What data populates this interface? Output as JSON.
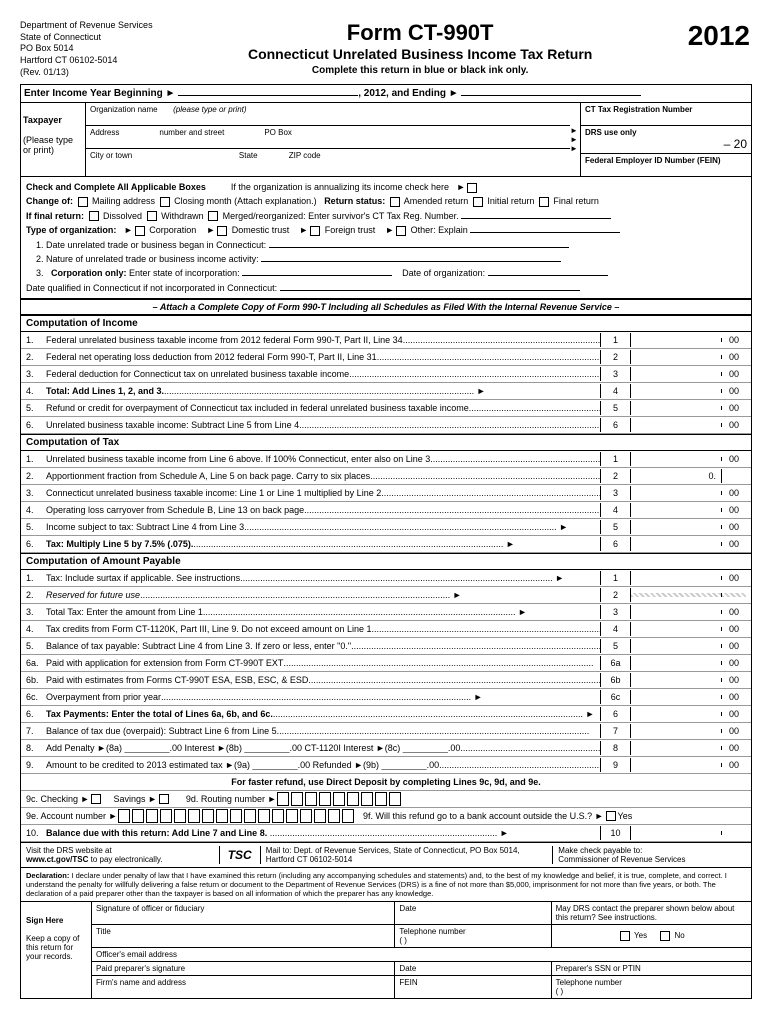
{
  "header": {
    "dept": "Department of Revenue Services",
    "state": "State of Connecticut",
    "pobox": "PO Box 5014",
    "city": "Hartford CT 06102-5014",
    "rev": "(Rev. 01/13)",
    "form_code": "Form CT-990T",
    "form_title": "Connecticut Unrelated Business Income Tax Return",
    "year": "2012",
    "instruction": "Complete this return in blue or black ink only."
  },
  "date_line": {
    "prefix": "Enter Income Year Beginning ►",
    "mid": ", 2012, and Ending ►"
  },
  "taxpayer": {
    "title": "Taxpayer",
    "note": "(Please type or print)",
    "org_label": "Organization name",
    "org_hint": "(please type or print)",
    "addr_label": "Address",
    "addr_hint": "number and street",
    "pobox_label": "PO Box",
    "city_label": "City or town",
    "state_label": "State",
    "zip_label": "ZIP code",
    "ct_reg": "CT Tax Registration Number",
    "drs": "DRS use only",
    "drs_val": "– 20",
    "fein": "Federal Employer ID Number (FEIN)"
  },
  "checkboxes": {
    "title": "Check and Complete All Applicable Boxes",
    "annualize": "If the organization is annualizing its income check here",
    "change_of": "Change of:",
    "mailing": "Mailing address",
    "closing": "Closing month (Attach explanation.)",
    "return_status": "Return status:",
    "amended": "Amended return",
    "initial": "Initial return",
    "final": "Final return",
    "if_final": "If final return:",
    "dissolved": "Dissolved",
    "withdrawn": "Withdrawn",
    "merged": "Merged/reorganized: Enter survivor's CT Tax Reg. Number.",
    "type_org": "Type of organization:",
    "corp": "Corporation",
    "domestic": "Domestic trust",
    "foreign": "Foreign trust",
    "other": "Other: Explain",
    "q1": "1.   Date unrelated trade or business began in Connecticut:",
    "q2": "2.   Nature of unrelated trade or business income activity:",
    "q3": "3.   Corporation only: Enter state of incorporation:",
    "q3b": "Date of organization:",
    "q4": "Date qualified in Connecticut if not incorporated in Connecticut:",
    "attach": "– Attach a Complete Copy of Form 990-T Including all Schedules as Filed With the Internal Revenue Service –"
  },
  "income": {
    "header": "Computation of Income",
    "lines": [
      {
        "n": "1.",
        "d": "Federal unrelated business taxable income from 2012 federal Form 990-T, Part II, Line 34",
        "b": "1",
        "c": "00"
      },
      {
        "n": "2.",
        "d": "Federal net operating loss deduction from 2012 federal Form 990-T, Part II, Line 31",
        "b": "2",
        "c": "00"
      },
      {
        "n": "3.",
        "d": "Federal deduction for Connecticut tax on unrelated business taxable income",
        "b": "3",
        "c": "00"
      },
      {
        "n": "4.",
        "d": "Total: Add Lines 1, 2, and 3.",
        "b": "4",
        "c": "00",
        "bold": true
      },
      {
        "n": "5.",
        "d": "Refund or credit for overpayment of Connecticut tax included in federal unrelated business taxable income",
        "b": "5",
        "c": "00"
      },
      {
        "n": "6.",
        "d": "Unrelated business taxable income: Subtract Line 5 from Line 4.",
        "b": "6",
        "c": "00"
      }
    ]
  },
  "tax": {
    "header": "Computation of Tax",
    "lines": [
      {
        "n": "1.",
        "d": "Unrelated business taxable income from Line 6 above.  If 100% Connecticut, enter also on Line 3.",
        "b": "1",
        "c": "00"
      },
      {
        "n": "2.",
        "d": "Apportionment fraction from Schedule A, Line 5 on back page. Carry to six places.",
        "b": "2",
        "a": "0.",
        "c": ""
      },
      {
        "n": "3.",
        "d": "Connecticut unrelated business taxable income: Line 1 or Line 1 multiplied by Line 2.",
        "b": "3",
        "c": "00"
      },
      {
        "n": "4.",
        "d": "Operating loss carryover from Schedule B, Line 13 on back page",
        "b": "4",
        "c": "00"
      },
      {
        "n": "5.",
        "d": "Income subject to tax: Subtract Line 4 from Line 3.",
        "b": "5",
        "c": "00"
      },
      {
        "n": "6.",
        "d": "Tax: Multiply Line 5 by 7.5% (.075).",
        "b": "6",
        "c": "00",
        "bold": true
      }
    ]
  },
  "payable": {
    "header": "Computation of Amount Payable",
    "lines": [
      {
        "n": "1.",
        "d": "Tax: Include surtax if applicable. See instructions.",
        "b": "1",
        "c": "00"
      },
      {
        "n": "2.",
        "d": "Reserved for future use",
        "b": "2",
        "shaded": true,
        "italic": true
      },
      {
        "n": "3.",
        "d": "Total Tax: Enter the amount from Line 1.",
        "b": "3",
        "c": "00"
      },
      {
        "n": "4.",
        "d": "Tax credits from Form CT-1120K, Part III, Line 9. Do not exceed amount on Line 1.",
        "b": "4",
        "c": "00"
      },
      {
        "n": "5.",
        "d": "Balance of tax payable: Subtract Line 4 from Line 3. If zero or less, enter \"0.\"",
        "b": "5",
        "c": "00"
      },
      {
        "n": "6a.",
        "d": "Paid with application for extension from Form CT-990T EXT",
        "b": "6a",
        "c": "00"
      },
      {
        "n": "6b.",
        "d": "Paid with estimates from Forms CT-990T ESA, ESB, ESC, & ESD",
        "b": "6b",
        "c": "00"
      },
      {
        "n": "6c.",
        "d": "Overpayment from prior year",
        "b": "6c",
        "c": "00"
      },
      {
        "n": "6.",
        "d": "Tax Payments: Enter the total of Lines 6a, 6b, and 6c.",
        "b": "6",
        "c": "00",
        "bold": true
      },
      {
        "n": "7.",
        "d": "Balance of tax due (overpaid): Subtract Line 6 from Line 5.",
        "b": "7",
        "c": "00"
      },
      {
        "n": "8.",
        "d": "Add Penalty ►(8a) _________.00  Interest ►(8b) _________.00  CT-1120I Interest ►(8c) _________.00",
        "b": "8",
        "c": "00"
      },
      {
        "n": "9.",
        "d": "Amount to be credited to 2013 estimated tax ►(9a) _________.00  Refunded ►(9b) _________.00",
        "b": "9",
        "c": "00"
      }
    ],
    "deposit_header": "For faster refund, use Direct Deposit by completing Lines 9c, 9d, and 9e.",
    "line9c": "9c.   Checking ►",
    "line9c_b": "Savings ►",
    "line9d": "9d.  Routing number ►",
    "line9e": "9e.   Account number ►",
    "line9f": "9f.  Will this refund go to a bank account outside the U.S.? ►",
    "line9f_yes": "Yes",
    "line10": {
      "n": "10.",
      "d": "Balance due with this return: Add Line 7 and Line 8.",
      "b": "10",
      "bold": true
    }
  },
  "footer": {
    "visit": "Visit the DRS website at",
    "web": "www.ct.gov/TSC",
    "web_suffix": " to pay electronically.",
    "tsc": "TSC",
    "mail": "Mail to: Dept. of Revenue Services, State of Connecticut, PO Box 5014, Hartford CT 06102-5014",
    "check": "Make check payable to:",
    "commissioner": "Commissioner of Revenue Services"
  },
  "declaration": {
    "title": "Declaration:",
    "text": "I declare under penalty of law that I have examined this return (including any accompanying schedules and statements) and, to the best of my knowledge and belief, it is true, complete, and correct. I understand the penalty for willfully delivering a false return or document to the Department of Revenue Services (DRS) is a fine of not more than $5,000, imprisonment for not more than five years, or both. The declaration of a paid preparer other than the taxpayer is based on all information of which the preparer has any knowledge."
  },
  "sign": {
    "sign_here": "Sign Here",
    "keep": "Keep a copy of this return for your records.",
    "sig": "Signature of officer or fiduciary",
    "date": "Date",
    "drs_contact": "May DRS contact the preparer shown below about this return? See instructions.",
    "yes": "Yes",
    "no": "No",
    "title": "Title",
    "phone": "Telephone number",
    "phone_val": "(          )",
    "email": "Officer's email address",
    "preparer": "Paid preparer's signature",
    "ssn": "Preparer's SSN or PTIN",
    "firm": "Firm's name and address",
    "fein": "FEIN"
  }
}
